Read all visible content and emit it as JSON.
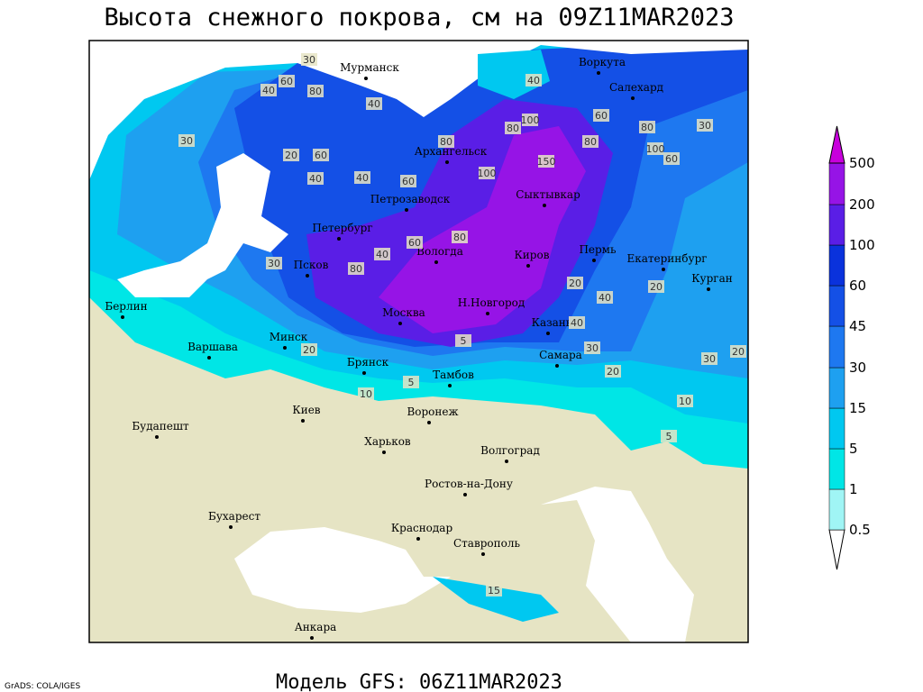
{
  "title": "Высота снежного покрова, см на 09Z11MAR2023",
  "footer": "Модель GFS: 06Z11MAR2023",
  "credit": "GrADS: COLA/IGES",
  "cities": [
    "Мурманск",
    "Воркута",
    "Салехард",
    "Архангельск",
    "Сыктывкар",
    "Петрозаводск",
    "Петербург",
    "Вологда",
    "Киров",
    "Пермь",
    "Екатеринбург",
    "Курган",
    "Псков",
    "Берлин",
    "Москва",
    "Н.Новгород",
    "Казань",
    "Минск",
    "Варшава",
    "Брянск",
    "Тамбов",
    "Самара",
    "Киев",
    "Воронеж",
    "Харьков",
    "Будапешт",
    "Волгоград",
    "Ростов-на-Дону",
    "Бухарест",
    "Краснодар",
    "Ставрополь",
    "Анкара"
  ],
  "contour_labels": [
    30,
    40,
    60,
    80,
    40,
    80,
    100,
    150,
    100,
    80,
    60,
    80,
    40,
    30,
    60,
    40,
    60,
    40,
    80,
    80,
    100,
    60,
    40,
    30,
    20,
    30,
    80,
    60,
    40,
    20,
    40,
    10,
    5,
    30,
    20,
    30,
    20,
    10,
    5,
    20,
    20,
    5,
    15
  ],
  "colorbar": {
    "labels": [
      "0.5",
      "1",
      "5",
      "15",
      "30",
      "45",
      "60",
      "100",
      "200",
      "500"
    ],
    "colors": [
      "#a0f5f5",
      "#00e6e6",
      "#00c8f0",
      "#1ea0f0",
      "#1e78f0",
      "#1450e6",
      "#0a32dc",
      "#5a1ee6",
      "#9614e6",
      "#c800dc"
    ],
    "under_color": "#ffffff",
    "over_color": "#c800dc"
  }
}
